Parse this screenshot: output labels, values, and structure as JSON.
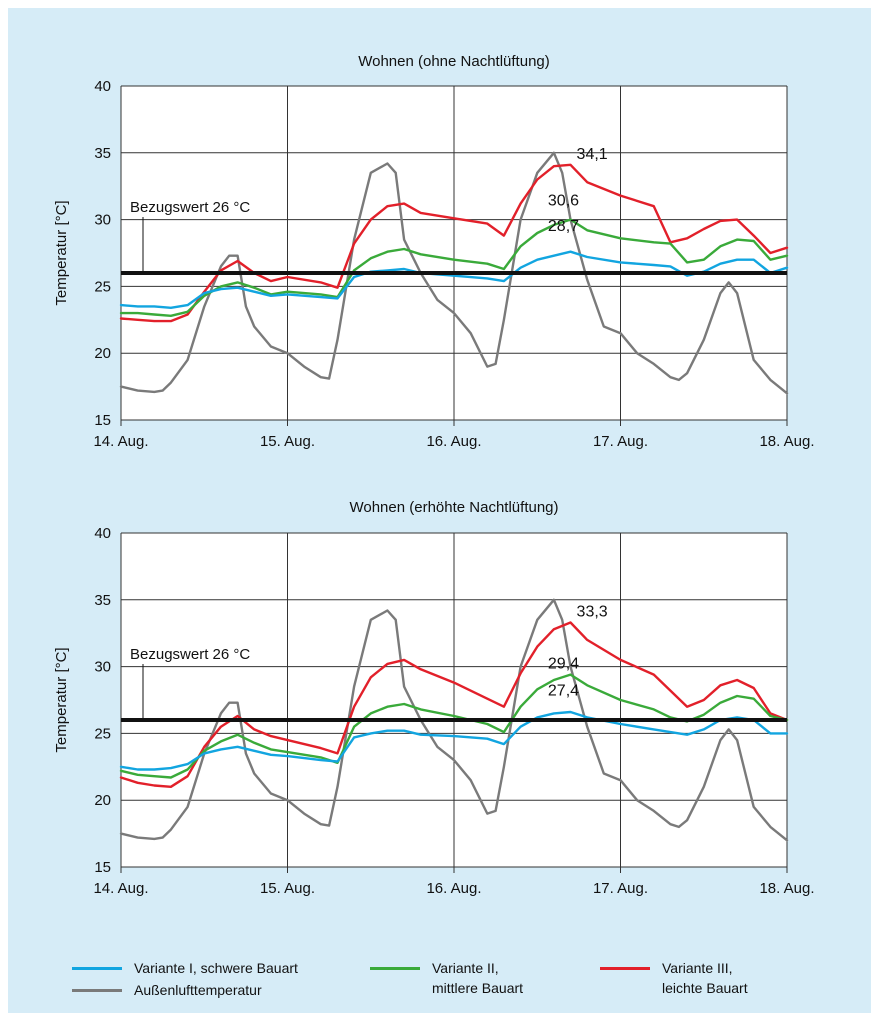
{
  "chart_data": [
    {
      "type": "line",
      "title": "Wohnen (ohne Nachtlüftung)",
      "ylabel": "Temperatur [°C]",
      "xlabel": "",
      "x_ticks": [
        "14. Aug.",
        "15. Aug.",
        "16. Aug.",
        "17. Aug.",
        "18. Aug."
      ],
      "xlim": [
        0,
        4
      ],
      "ylim": [
        15,
        40
      ],
      "y_ticks": [
        15,
        20,
        25,
        30,
        35,
        40
      ],
      "grid": true,
      "reference_line": {
        "label": "Bezugswert 26 °C",
        "value": 26
      },
      "series": [
        {
          "name": "Variante I, schwere Bauart",
          "color": "#12a5e0",
          "x": [
            0,
            0.1,
            0.2,
            0.3,
            0.4,
            0.5,
            0.6,
            0.7,
            0.8,
            0.9,
            1.0,
            1.2,
            1.3,
            1.4,
            1.5,
            1.6,
            1.7,
            1.8,
            2.0,
            2.2,
            2.3,
            2.4,
            2.5,
            2.6,
            2.7,
            2.8,
            3.0,
            3.2,
            3.3,
            3.4,
            3.5,
            3.6,
            3.7,
            3.8,
            3.9,
            4.0
          ],
          "values": [
            23.6,
            23.5,
            23.5,
            23.4,
            23.6,
            24.5,
            24.8,
            24.9,
            24.6,
            24.3,
            24.4,
            24.2,
            24.1,
            25.7,
            26.1,
            26.2,
            26.3,
            26.0,
            25.8,
            25.6,
            25.4,
            26.4,
            27.0,
            27.3,
            27.6,
            27.2,
            26.8,
            26.6,
            26.5,
            25.8,
            26.1,
            26.7,
            27.0,
            27.0,
            26.0,
            26.4
          ]
        },
        {
          "name": "Variante II, mittlere Bauart",
          "color": "#3aaa3a",
          "x": [
            0,
            0.1,
            0.2,
            0.3,
            0.4,
            0.5,
            0.6,
            0.7,
            0.8,
            0.9,
            1.0,
            1.2,
            1.3,
            1.4,
            1.5,
            1.6,
            1.7,
            1.8,
            2.0,
            2.2,
            2.3,
            2.4,
            2.5,
            2.6,
            2.7,
            2.8,
            3.0,
            3.2,
            3.3,
            3.4,
            3.5,
            3.6,
            3.7,
            3.8,
            3.9,
            4.0
          ],
          "values": [
            23.0,
            23.0,
            22.9,
            22.8,
            23.1,
            24.3,
            25.0,
            25.3,
            24.9,
            24.4,
            24.6,
            24.4,
            24.2,
            26.2,
            27.1,
            27.6,
            27.8,
            27.4,
            27.0,
            26.7,
            26.3,
            28.0,
            29.0,
            29.6,
            30.0,
            29.2,
            28.6,
            28.3,
            28.2,
            26.8,
            27.0,
            28.0,
            28.5,
            28.4,
            27.0,
            27.3
          ]
        },
        {
          "name": "Variante III, leichte Bauart",
          "color": "#e2202a",
          "x": [
            0,
            0.1,
            0.2,
            0.3,
            0.4,
            0.5,
            0.6,
            0.7,
            0.8,
            0.9,
            1.0,
            1.2,
            1.3,
            1.4,
            1.5,
            1.6,
            1.7,
            1.8,
            2.0,
            2.2,
            2.3,
            2.4,
            2.5,
            2.6,
            2.7,
            2.8,
            3.0,
            3.2,
            3.3,
            3.4,
            3.5,
            3.6,
            3.7,
            3.8,
            3.9,
            4.0
          ],
          "values": [
            22.6,
            22.5,
            22.4,
            22.4,
            22.9,
            24.6,
            26.2,
            26.9,
            26.0,
            25.4,
            25.7,
            25.3,
            24.9,
            28.2,
            30.0,
            31.0,
            31.2,
            30.5,
            30.1,
            29.7,
            28.8,
            31.2,
            33.0,
            34.0,
            34.1,
            32.8,
            31.8,
            31.0,
            28.3,
            28.6,
            29.3,
            29.9,
            30.0,
            28.8,
            27.5,
            27.9
          ]
        },
        {
          "name": "Außenlufttemperatur",
          "color": "#7a7a7a",
          "x": [
            0,
            0.1,
            0.2,
            0.25,
            0.3,
            0.4,
            0.5,
            0.6,
            0.65,
            0.7,
            0.75,
            0.8,
            0.9,
            1.0,
            1.1,
            1.2,
            1.25,
            1.3,
            1.4,
            1.5,
            1.6,
            1.65,
            1.7,
            1.8,
            1.9,
            2.0,
            2.1,
            2.2,
            2.25,
            2.3,
            2.4,
            2.5,
            2.6,
            2.65,
            2.7,
            2.8,
            2.9,
            3.0,
            3.1,
            3.2,
            3.3,
            3.35,
            3.4,
            3.5,
            3.6,
            3.65,
            3.7,
            3.8,
            3.9,
            4.0
          ],
          "values": [
            17.5,
            17.2,
            17.1,
            17.2,
            17.8,
            19.5,
            23.5,
            26.5,
            27.3,
            27.3,
            23.5,
            22.0,
            20.5,
            20.0,
            19.0,
            18.2,
            18.1,
            21.0,
            28.5,
            33.5,
            34.2,
            33.5,
            28.5,
            26.0,
            24.0,
            23.0,
            21.5,
            19.0,
            19.2,
            22.5,
            30.0,
            33.5,
            35.0,
            33.5,
            30.0,
            25.5,
            22.0,
            21.5,
            20.0,
            19.2,
            18.2,
            18.0,
            18.5,
            21.0,
            24.5,
            25.3,
            24.5,
            19.5,
            18.0,
            17.0
          ]
        }
      ],
      "annotations": [
        {
          "text": "34,1",
          "x": 2.7,
          "y": 34.1
        },
        {
          "text": "30,6",
          "x": 2.6,
          "y": 30.6
        },
        {
          "text": "28,7",
          "x": 2.6,
          "y": 28.7
        }
      ]
    },
    {
      "type": "line",
      "title": "Wohnen (erhöhte Nachtlüftung)",
      "ylabel": "Temperatur [°C]",
      "xlabel": "",
      "x_ticks": [
        "14. Aug.",
        "15. Aug.",
        "16. Aug.",
        "17. Aug.",
        "18. Aug."
      ],
      "xlim": [
        0,
        4
      ],
      "ylim": [
        15,
        40
      ],
      "y_ticks": [
        15,
        20,
        25,
        30,
        35,
        40
      ],
      "grid": true,
      "reference_line": {
        "label": "Bezugswert 26 °C",
        "value": 26
      },
      "series": [
        {
          "name": "Variante I, schwere Bauart",
          "color": "#12a5e0",
          "x": [
            0,
            0.1,
            0.2,
            0.3,
            0.4,
            0.5,
            0.6,
            0.7,
            0.8,
            0.9,
            1.0,
            1.2,
            1.3,
            1.4,
            1.5,
            1.6,
            1.7,
            1.8,
            2.0,
            2.2,
            2.3,
            2.4,
            2.5,
            2.6,
            2.7,
            2.8,
            3.0,
            3.2,
            3.3,
            3.4,
            3.5,
            3.6,
            3.7,
            3.8,
            3.9,
            4.0
          ],
          "values": [
            22.5,
            22.3,
            22.3,
            22.4,
            22.7,
            23.5,
            23.8,
            24.0,
            23.7,
            23.4,
            23.3,
            23.0,
            22.9,
            24.7,
            25.0,
            25.2,
            25.2,
            24.9,
            24.8,
            24.6,
            24.2,
            25.5,
            26.2,
            26.5,
            26.6,
            26.2,
            25.7,
            25.3,
            25.1,
            24.9,
            25.3,
            26.0,
            26.2,
            26.0,
            25.0,
            25.0
          ]
        },
        {
          "name": "Variante II, mittlere Bauart",
          "color": "#3aaa3a",
          "x": [
            0,
            0.1,
            0.2,
            0.3,
            0.4,
            0.5,
            0.6,
            0.7,
            0.8,
            0.9,
            1.0,
            1.2,
            1.3,
            1.4,
            1.5,
            1.6,
            1.7,
            1.8,
            2.0,
            2.2,
            2.3,
            2.4,
            2.5,
            2.6,
            2.7,
            2.8,
            3.0,
            3.2,
            3.3,
            3.4,
            3.5,
            3.6,
            3.7,
            3.8,
            3.9,
            4.0
          ],
          "values": [
            22.2,
            21.9,
            21.8,
            21.7,
            22.3,
            23.7,
            24.4,
            24.9,
            24.3,
            23.8,
            23.6,
            23.2,
            22.8,
            25.5,
            26.5,
            27.0,
            27.2,
            26.8,
            26.3,
            25.7,
            25.1,
            27.0,
            28.3,
            29.0,
            29.4,
            28.6,
            27.5,
            26.8,
            26.2,
            25.9,
            26.4,
            27.3,
            27.8,
            27.6,
            26.3,
            26.0
          ]
        },
        {
          "name": "Variante III, leichte Bauart",
          "color": "#e2202a",
          "x": [
            0,
            0.1,
            0.2,
            0.3,
            0.4,
            0.5,
            0.6,
            0.7,
            0.8,
            0.9,
            1.0,
            1.2,
            1.3,
            1.4,
            1.5,
            1.6,
            1.7,
            1.8,
            2.0,
            2.2,
            2.3,
            2.4,
            2.5,
            2.6,
            2.7,
            2.8,
            3.0,
            3.2,
            3.3,
            3.4,
            3.5,
            3.6,
            3.7,
            3.8,
            3.9,
            4.0
          ],
          "values": [
            21.7,
            21.3,
            21.1,
            21.0,
            21.8,
            24.0,
            25.5,
            26.3,
            25.3,
            24.8,
            24.5,
            23.9,
            23.5,
            27.0,
            29.2,
            30.2,
            30.5,
            29.8,
            28.8,
            27.6,
            27.0,
            29.5,
            31.5,
            32.8,
            33.3,
            32.0,
            30.5,
            29.4,
            28.2,
            27.0,
            27.5,
            28.6,
            29.0,
            28.4,
            26.5,
            26.0
          ]
        },
        {
          "name": "Außenlufttemperatur",
          "color": "#7a7a7a",
          "x": [
            0,
            0.1,
            0.2,
            0.25,
            0.3,
            0.4,
            0.5,
            0.6,
            0.65,
            0.7,
            0.75,
            0.8,
            0.9,
            1.0,
            1.1,
            1.2,
            1.25,
            1.3,
            1.4,
            1.5,
            1.6,
            1.65,
            1.7,
            1.8,
            1.9,
            2.0,
            2.1,
            2.2,
            2.25,
            2.3,
            2.4,
            2.5,
            2.6,
            2.65,
            2.7,
            2.8,
            2.9,
            3.0,
            3.1,
            3.2,
            3.3,
            3.35,
            3.4,
            3.5,
            3.6,
            3.65,
            3.7,
            3.8,
            3.9,
            4.0
          ],
          "values": [
            17.5,
            17.2,
            17.1,
            17.2,
            17.8,
            19.5,
            23.5,
            26.5,
            27.3,
            27.3,
            23.5,
            22.0,
            20.5,
            20.0,
            19.0,
            18.2,
            18.1,
            21.0,
            28.5,
            33.5,
            34.2,
            33.5,
            28.5,
            26.0,
            24.0,
            23.0,
            21.5,
            19.0,
            19.2,
            22.5,
            30.0,
            33.5,
            35.0,
            33.5,
            30.0,
            25.5,
            22.0,
            21.5,
            20.0,
            19.2,
            18.2,
            18.0,
            18.5,
            21.0,
            24.5,
            25.3,
            24.5,
            19.5,
            18.0,
            17.0
          ]
        }
      ],
      "annotations": [
        {
          "text": "33,3",
          "x": 2.7,
          "y": 33.3
        },
        {
          "text": "29,4",
          "x": 2.6,
          "y": 29.4
        },
        {
          "text": "27,4",
          "x": 2.6,
          "y": 27.4
        }
      ]
    }
  ],
  "legend": [
    {
      "label": "Variante I, schwere Bauart",
      "color": "#12a5e0"
    },
    {
      "label": "Außenlufttemperatur",
      "color": "#7a7a7a"
    },
    {
      "label": "Variante II,\nmittlere Bauart",
      "color": "#3aaa3a"
    },
    {
      "label": "Variante III,\nleichte Bauart",
      "color": "#e2202a"
    }
  ]
}
